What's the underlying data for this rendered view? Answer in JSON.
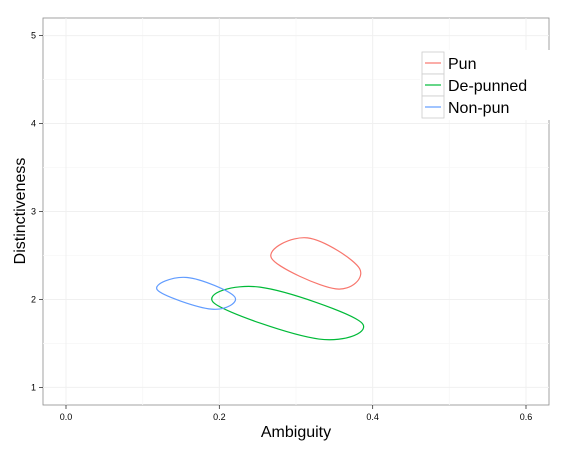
{
  "chart_data": {
    "type": "scatter",
    "xlabel": "Ambiguity",
    "ylabel": "Distinctiveness",
    "xlim": [
      -0.03,
      0.63
    ],
    "ylim": [
      0.8,
      5.2
    ],
    "xticks": [
      0.0,
      0.2,
      0.4,
      0.6
    ],
    "xtick_labels": [
      "0.0",
      "0.2",
      "0.4",
      "0.6"
    ],
    "yticks": [
      1,
      2,
      3,
      4,
      5
    ],
    "ytick_labels": [
      "1",
      "2",
      "3",
      "4",
      "5"
    ],
    "grid": true,
    "legend_position": "top-right",
    "series": [
      {
        "name": "Pun",
        "color": "#F8766D",
        "ellipse": {
          "center": [
            0.338,
            2.41
          ],
          "points": [
            [
              0.268,
              2.47
            ],
            [
              0.315,
              2.7
            ],
            [
              0.383,
              2.35
            ],
            [
              0.352,
              2.12
            ]
          ]
        }
      },
      {
        "name": "De-punned",
        "color": "#00BA38",
        "ellipse": {
          "center": [
            0.29,
            1.84
          ],
          "points": [
            [
              0.193,
              1.96
            ],
            [
              0.253,
              2.14
            ],
            [
              0.385,
              1.74
            ],
            [
              0.33,
              1.55
            ]
          ]
        }
      },
      {
        "name": "Non-pun",
        "color": "#619CFF",
        "ellipse": {
          "center": [
            0.17,
            2.07
          ],
          "points": [
            [
              0.119,
              2.11
            ],
            [
              0.158,
              2.25
            ],
            [
              0.22,
              2.03
            ],
            [
              0.19,
              1.89
            ]
          ]
        }
      }
    ]
  }
}
